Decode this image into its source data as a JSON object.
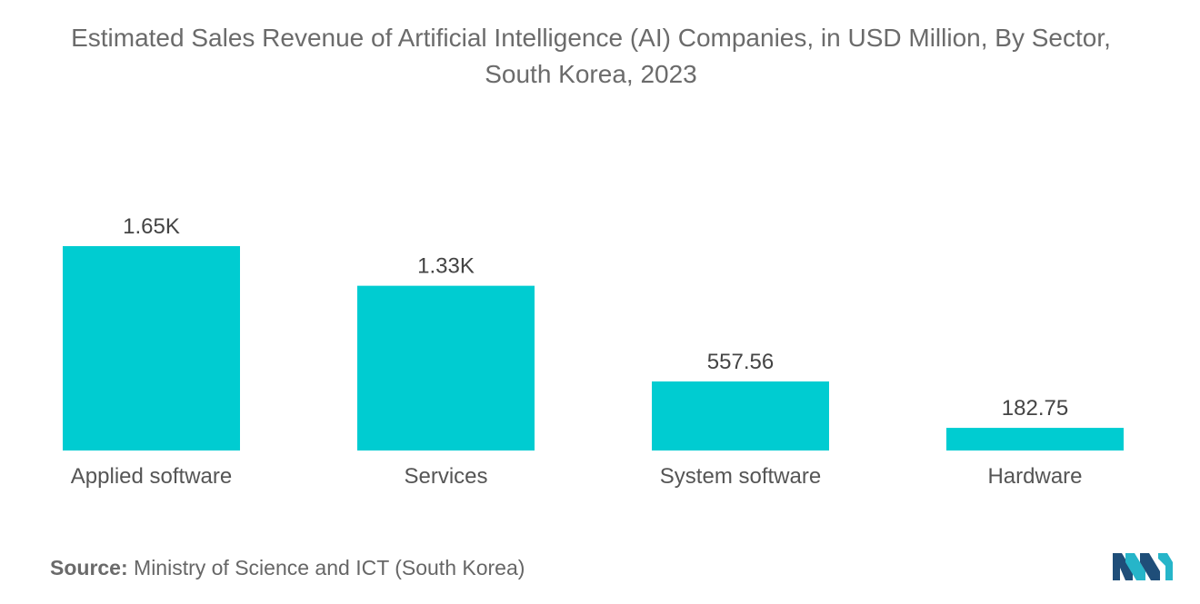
{
  "chart_data": {
    "type": "bar",
    "title_line1": "Estimated Sales Revenue of Artificial Intelligence (AI) Companies, in USD Million, By Sector,",
    "title_line2": "South Korea, 2023",
    "categories": [
      "Applied software",
      "Services",
      "System software",
      "Hardware"
    ],
    "values": [
      1650,
      1330,
      557.56,
      182.75
    ],
    "data_labels": [
      "1.65K",
      "1.33K",
      "557.56",
      "182.75"
    ],
    "xlabel": "",
    "ylabel": "",
    "ylim": [
      0,
      1650
    ],
    "grid": false,
    "legend": "none",
    "bar_color": "#00ccd1"
  },
  "source": {
    "label": "Source:",
    "text": "Ministry of Science and ICT (South Korea)"
  },
  "logo": {
    "icon": "mordor-intelligence-logo-icon",
    "colors": [
      "#1f4e79",
      "#26b5c9"
    ]
  }
}
